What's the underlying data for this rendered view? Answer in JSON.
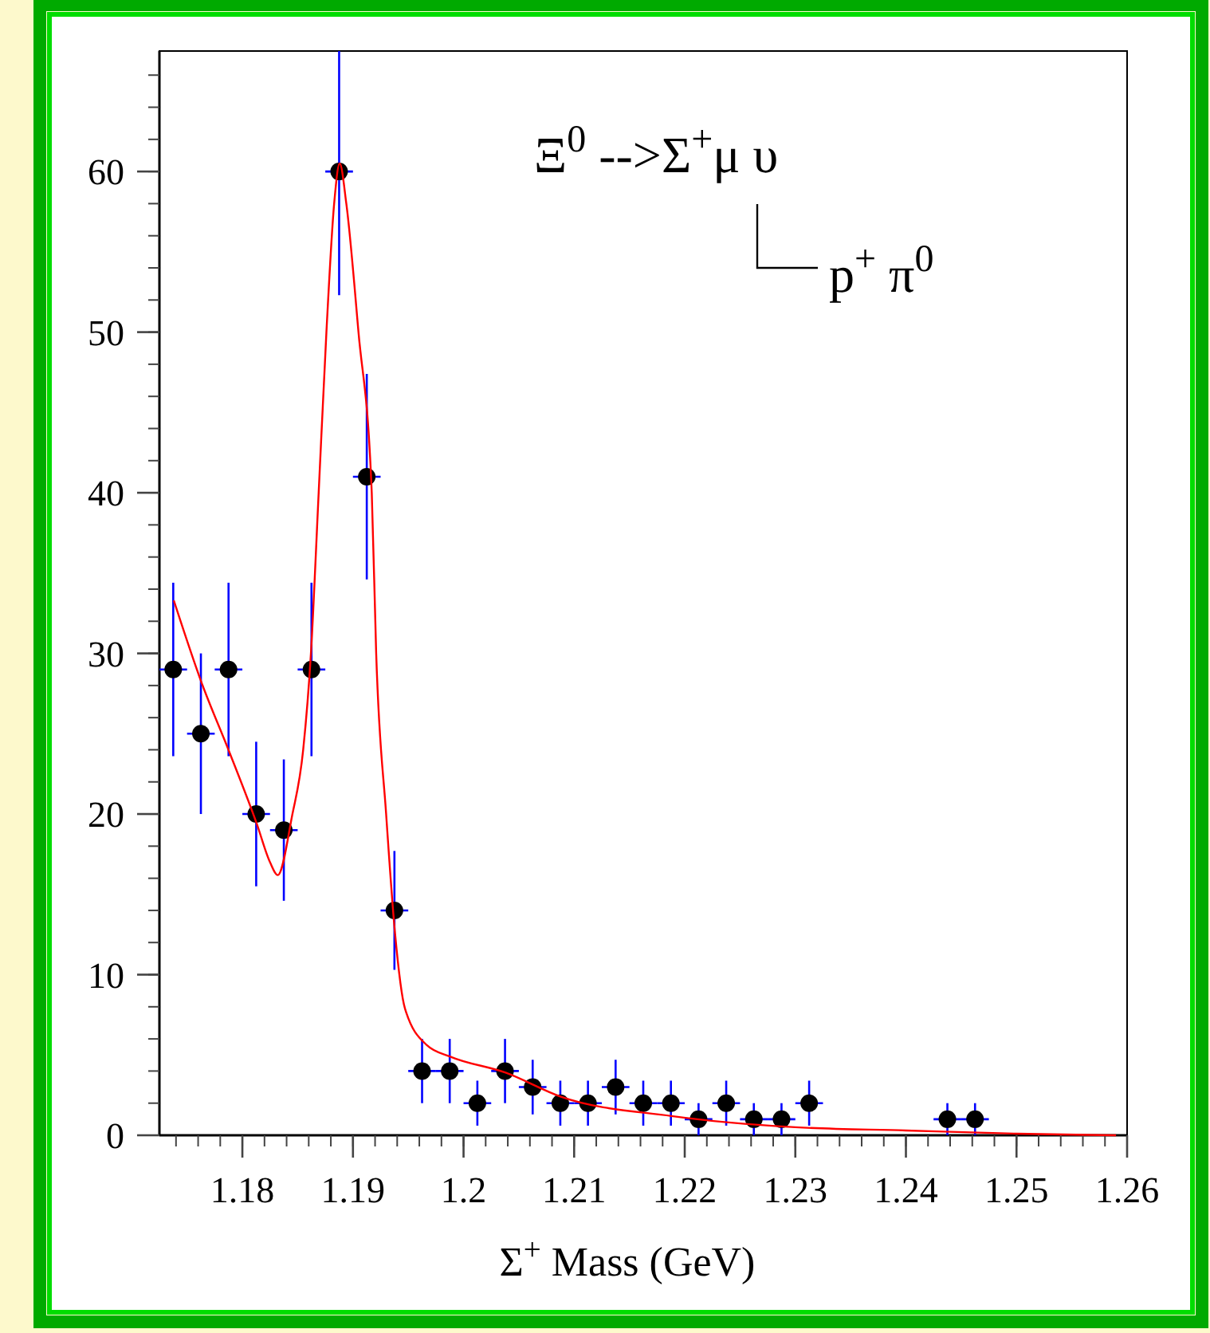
{
  "chart_data": {
    "type": "scatter",
    "xlabel": "Σ$^{+}$  Mass (GeV)",
    "annotations": [
      "Ξ$^{0}$ -->Σ$^{+}$μ υ",
      "p$^{+}$ π$^{0}$"
    ],
    "xlim": [
      1.1725,
      1.26
    ],
    "xticks": [
      1.18,
      1.19,
      {
        "value": 1.2,
        "label": "1.2"
      },
      1.21,
      1.22,
      1.23,
      1.24,
      1.25,
      1.26
    ],
    "ylim": [
      0,
      67.5
    ],
    "yticks": [
      0,
      10,
      20,
      30,
      40,
      50,
      60
    ],
    "marker": "circle",
    "series": [
      {
        "color": "#000000",
        "x": [
          1.17375,
          1.17625,
          1.17875,
          1.18125,
          1.18375,
          1.18625,
          1.18875,
          1.19125,
          1.19375,
          1.19625,
          1.19875,
          1.20125,
          1.20375,
          1.20625,
          1.20875,
          1.21125,
          1.21375,
          1.21625,
          1.21875,
          1.22125,
          1.22375,
          1.22625,
          1.22875,
          1.23125,
          1.24375,
          1.24625
        ],
        "values": [
          29,
          25,
          29,
          20,
          19,
          29,
          60,
          41,
          14,
          4,
          4,
          2,
          4,
          3,
          2,
          2,
          3,
          2,
          2,
          1,
          2,
          1,
          1,
          2,
          1,
          1
        ],
        "errors": [
          5.4,
          5,
          5.4,
          4.5,
          4.4,
          5.4,
          [
            52.3,
            67.5
          ],
          6.4,
          3.7,
          2,
          2,
          1.4,
          2,
          1.7,
          1.4,
          1.4,
          1.7,
          1.4,
          1.4,
          1,
          1.4,
          1,
          1,
          1.4,
          1,
          1
        ],
        "xerrors": [
          0.00125,
          0.00125,
          0.00125,
          0.00125,
          0.00125,
          0.00125,
          0.00125,
          0.00125,
          0.00125,
          0.00125,
          0.00125,
          0.00125,
          0.00125,
          0.00125,
          0.00125,
          0.00125,
          0.00125,
          0.00125,
          0.00125,
          0.00125,
          0.00125,
          0.00125,
          0.00125,
          0.00125,
          0.00125,
          0.00125
        ]
      },
      {
        "type": "line",
        "color": "#ff0000",
        "marker": "none",
        "x": [
          1.1738,
          1.1763,
          1.1788,
          1.1813,
          1.1825,
          1.1832,
          1.1845,
          1.1855,
          1.1862,
          1.1869,
          1.1876,
          1.1883,
          1.1888,
          1.1894,
          1.1905,
          1.1917,
          1.1921,
          1.193,
          1.1938,
          1.1947,
          1.1967,
          1.1988,
          1.2038,
          1.2088,
          1.2188,
          1.23,
          1.24,
          1.25,
          1.259
        ],
        "values": [
          33.3,
          28.2,
          23.9,
          19.4,
          17,
          16.2,
          19.9,
          24,
          30,
          40,
          50,
          58,
          60.5,
          58,
          50,
          40,
          30,
          20,
          12.6,
          7.9,
          5.6,
          4.9,
          3.9,
          2.4,
          1.2,
          0.5,
          0.3,
          0.1,
          0
        ]
      }
    ]
  }
}
